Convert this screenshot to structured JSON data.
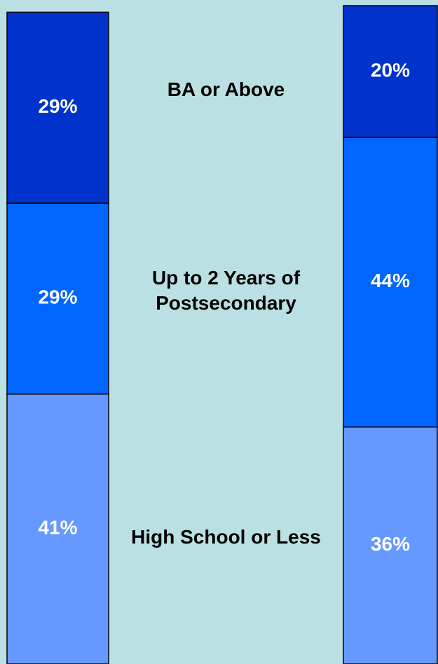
{
  "chart_data": {
    "type": "stacked_bar",
    "categories": [
      null,
      null
    ],
    "series": [
      {
        "name": "High School or Less",
        "color": "#6699ff",
        "values": [
          41,
          36
        ],
        "value_labels": [
          "41%",
          "36%"
        ]
      },
      {
        "name": "Up to 2 Years of Postsecondary",
        "color": "#0066ff",
        "values": [
          29,
          44
        ],
        "value_labels": [
          "29%",
          "44%"
        ]
      },
      {
        "name": "BA or Above",
        "color": "#0033cc",
        "values": [
          29,
          20
        ],
        "value_labels": [
          "29%",
          "20%"
        ]
      }
    ],
    "ylim": [
      0,
      100
    ],
    "background": "#bbe0e3"
  }
}
